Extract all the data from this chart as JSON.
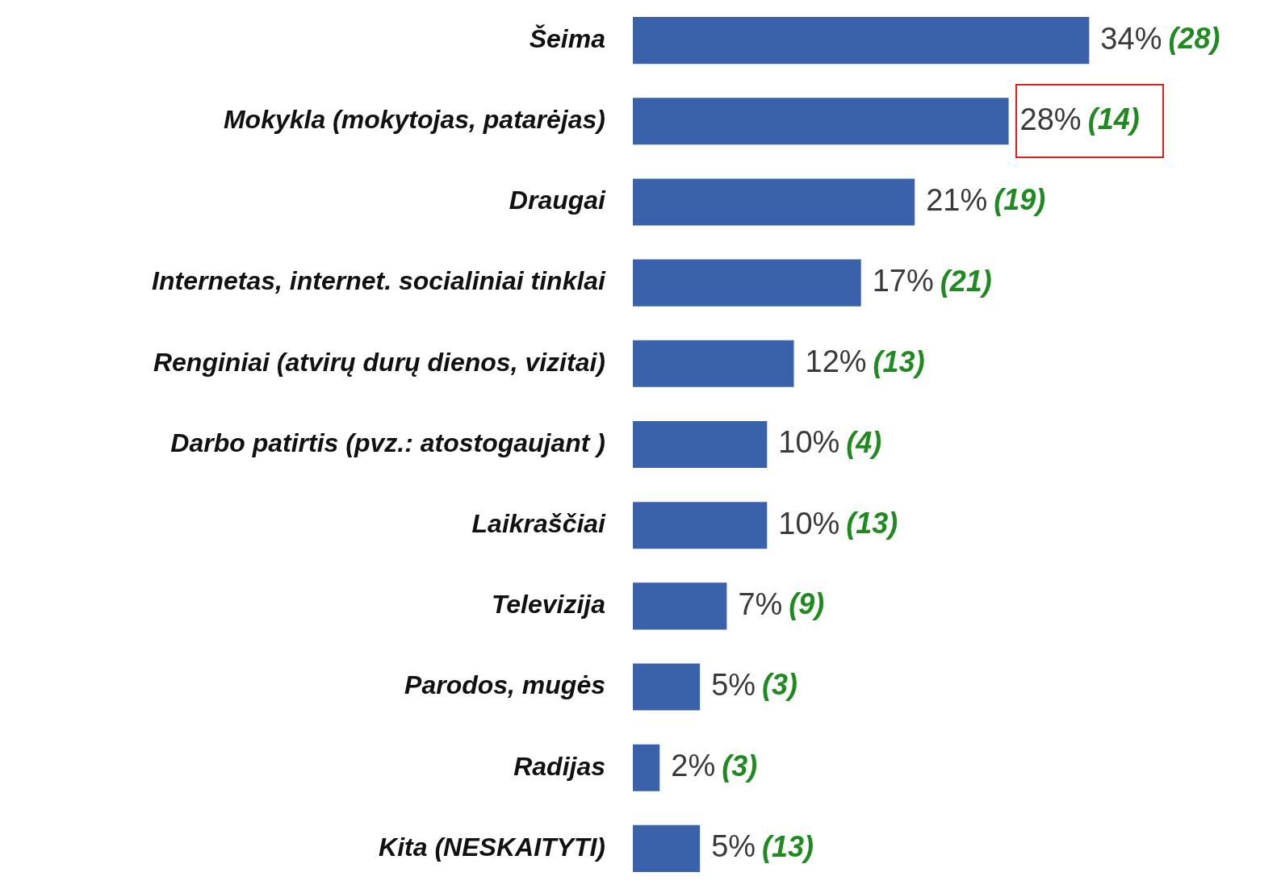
{
  "chart_data": {
    "type": "bar",
    "orientation": "horizontal",
    "categories": [
      "Šeima",
      "Mokykla (mokytojas, patarėjas)",
      "Draugai",
      "Internetas, internet. socialiniai tinklai",
      "Renginiai (atvirų durų dienos, vizitai)",
      "Darbo patirtis (pvz.: atostogaujant )",
      "Laikraščiai",
      "Televizija",
      "Parodos, mugės",
      "Radijas",
      "Kita (NESKAITYTI)"
    ],
    "values": [
      34,
      28,
      21,
      17,
      12,
      10,
      10,
      7,
      5,
      2,
      5
    ],
    "color": "#3a62aa",
    "value_labels": [
      "34%",
      "28%",
      "21%",
      "17%",
      "12%",
      "10%",
      "10%",
      "7%",
      "5%",
      "2%",
      "5%"
    ],
    "tick_labels": "y",
    "grid": false,
    "annotations": [
      "(28)",
      "(14)",
      "(19)",
      "(21)",
      "(13)",
      "(4)",
      "(13)",
      "(9)",
      "(3)",
      "(3)",
      "(13)"
    ]
  }
}
